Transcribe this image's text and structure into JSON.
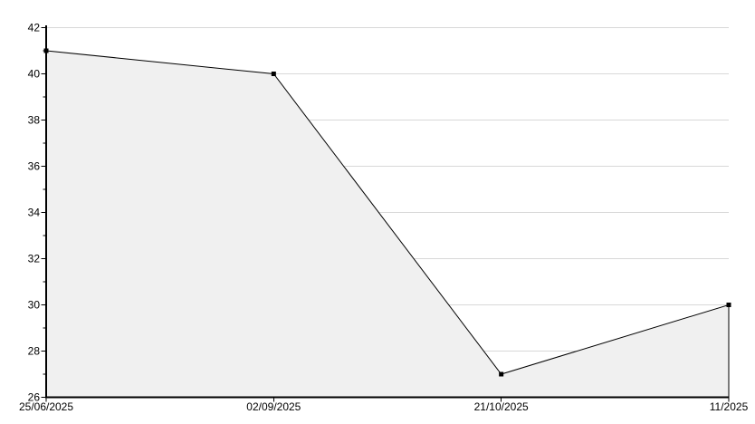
{
  "colors": {
    "line": "#000000",
    "area_fill": "#f0f0f0",
    "grid": "#d8d8d8",
    "background": "#ffffff",
    "text": "#000000"
  },
  "chart_data": {
    "type": "area",
    "title": "",
    "xlabel": "",
    "ylabel": "",
    "categories": [
      "25/06/2025",
      "02/09/2025",
      "21/10/2025",
      "11/2025"
    ],
    "values": [
      41,
      40,
      27,
      30
    ],
    "ylim": [
      26,
      42
    ],
    "y_ticks": [
      26,
      28,
      30,
      32,
      34,
      36,
      38,
      40,
      42
    ],
    "y_minor_step": 1,
    "grid": true,
    "legend": false,
    "marker": "square",
    "x_spacing": "equal"
  }
}
